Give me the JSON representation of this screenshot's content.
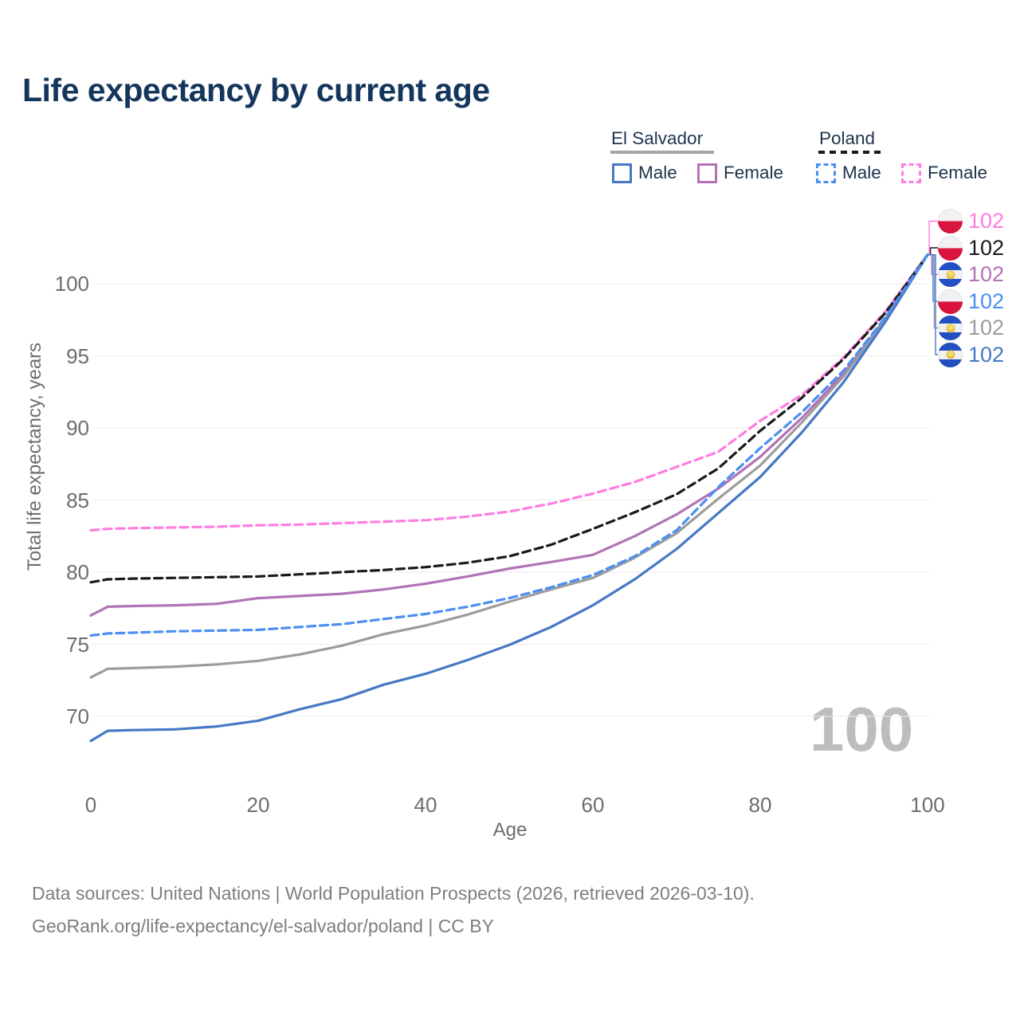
{
  "title": "Life expectancy by current age",
  "legend": {
    "el_salvador": {
      "label": "El Salvador",
      "line_style": "solid",
      "line_color": "#9c9c9c",
      "male_label": "Male",
      "male_color": "#4678c4",
      "female_label": "Female",
      "female_color": "#b273b6"
    },
    "poland": {
      "label": "Poland",
      "line_style": "dashed",
      "line_color": "#1a1a1a",
      "male_label": "Male",
      "male_color": "#4b8ff2",
      "female_label": "Female",
      "female_color": "#ff7ce2"
    }
  },
  "watermark_age": "100",
  "footer": {
    "line1": "Data sources: United Nations | World Population Prospects (2026, retrieved 2026-03-10).",
    "line2": "GeoRank.org/life-expectancy/el-salvador/poland | CC BY"
  },
  "chart_data": {
    "type": "line",
    "title": "Life expectancy by current age",
    "xlabel": "Age",
    "ylabel": "Total life expectancy, years",
    "xlim": [
      0,
      100
    ],
    "ylim": [
      66,
      103
    ],
    "x_ticks": [
      0,
      20,
      40,
      60,
      80,
      100
    ],
    "y_ticks": [
      70,
      75,
      80,
      85,
      90,
      95,
      100
    ],
    "grid": "horizontal",
    "legend_position": "top-right",
    "x": [
      0,
      2,
      5,
      10,
      15,
      20,
      25,
      30,
      35,
      40,
      45,
      50,
      55,
      60,
      65,
      70,
      75,
      80,
      85,
      90,
      95,
      100
    ],
    "series": [
      {
        "id": "poland-female",
        "name": "Poland Female",
        "country": "Poland",
        "sex": "Female",
        "color": "#ff7ce2",
        "dash": true,
        "flag": "poland",
        "end_label": "102",
        "values": [
          82.9,
          83.0,
          83.05,
          83.1,
          83.15,
          83.25,
          83.3,
          83.4,
          83.5,
          83.6,
          83.85,
          84.2,
          84.75,
          85.45,
          86.25,
          87.3,
          88.35,
          90.5,
          92.3,
          94.9,
          98.1,
          102
        ]
      },
      {
        "id": "poland",
        "name": "Poland",
        "country": "Poland",
        "sex": "All",
        "color": "#1a1a1a",
        "dash": true,
        "flag": "poland",
        "end_label": "102",
        "values": [
          79.3,
          79.5,
          79.55,
          79.6,
          79.65,
          79.7,
          79.85,
          80.0,
          80.15,
          80.35,
          80.65,
          81.1,
          81.9,
          83.0,
          84.15,
          85.4,
          87.2,
          89.8,
          92.1,
          94.8,
          98.0,
          102
        ]
      },
      {
        "id": "el-salvador-female",
        "name": "El Salvador Female",
        "country": "El Salvador",
        "sex": "Female",
        "color": "#b273b6",
        "dash": false,
        "flag": "el-salvador",
        "end_label": "102",
        "values": [
          77.0,
          77.6,
          77.65,
          77.7,
          77.8,
          78.2,
          78.35,
          78.5,
          78.8,
          79.2,
          79.7,
          80.25,
          80.7,
          81.2,
          82.5,
          84.0,
          85.8,
          88.0,
          90.7,
          93.8,
          97.6,
          102
        ]
      },
      {
        "id": "poland-male",
        "name": "Poland Male",
        "country": "Poland",
        "sex": "Male",
        "color": "#4b8ff2",
        "dash": true,
        "flag": "poland",
        "end_label": "102",
        "values": [
          75.6,
          75.75,
          75.8,
          75.9,
          75.95,
          76.0,
          76.2,
          76.4,
          76.75,
          77.1,
          77.6,
          78.2,
          78.95,
          79.8,
          81.1,
          82.9,
          85.9,
          88.6,
          91.1,
          94.0,
          97.7,
          102
        ]
      },
      {
        "id": "el-salvador",
        "name": "El Salvador",
        "country": "El Salvador",
        "sex": "All",
        "color": "#9c9c9c",
        "dash": false,
        "flag": "el-salvador",
        "end_label": "102",
        "values": [
          72.7,
          73.3,
          73.35,
          73.45,
          73.6,
          73.85,
          74.3,
          74.9,
          75.7,
          76.3,
          77.05,
          77.95,
          78.8,
          79.6,
          81.0,
          82.7,
          85.1,
          87.4,
          90.4,
          93.6,
          97.5,
          102
        ]
      },
      {
        "id": "el-salvador-male",
        "name": "El Salvador Male",
        "country": "El Salvador",
        "sex": "Male",
        "color": "#4678c4",
        "dash": false,
        "flag": "el-salvador",
        "end_label": "102",
        "values": [
          68.3,
          69.0,
          69.05,
          69.1,
          69.3,
          69.7,
          70.5,
          71.2,
          72.2,
          72.95,
          73.9,
          74.95,
          76.2,
          77.7,
          79.5,
          81.6,
          84.1,
          86.6,
          89.7,
          93.2,
          97.4,
          102
        ]
      }
    ]
  }
}
